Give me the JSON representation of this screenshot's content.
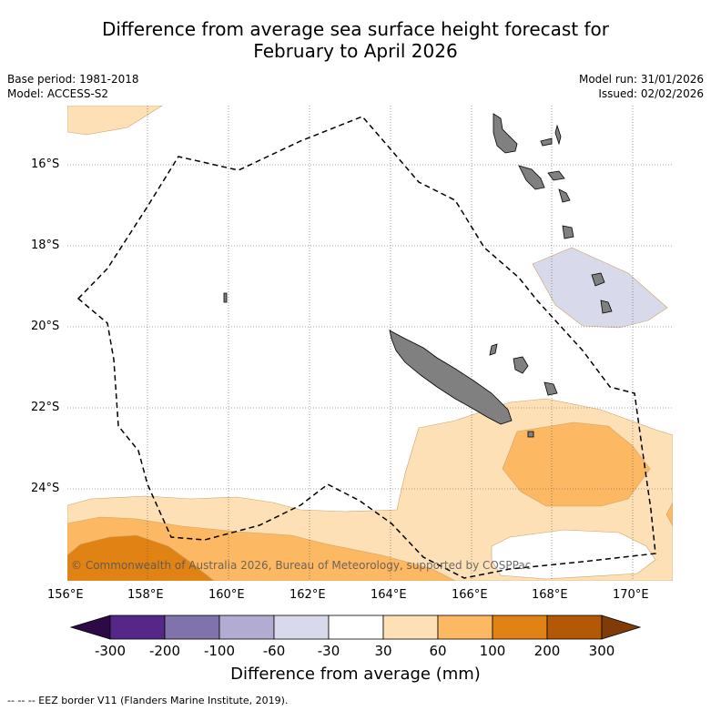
{
  "title": {
    "line1": "Difference from average sea surface height forecast for",
    "line2": "February to April 2026"
  },
  "meta": {
    "base_period": "Base period: 1981-2018",
    "model": "Model: ACCESS-S2",
    "model_run": "Model run: 31/01/2026",
    "issued": "Issued: 02/02/2026"
  },
  "map": {
    "lon_labels": [
      "156°E",
      "158°E",
      "160°E",
      "162°E",
      "164°E",
      "166°E",
      "168°E",
      "170°E"
    ],
    "lat_labels": [
      "16°S",
      "18°S",
      "20°S",
      "22°S",
      "24°S"
    ],
    "copyright": "© Commonwealth of Australia 2026, Bureau of Meteorology, supported by COSPPac"
  },
  "colorbar": {
    "ticks": [
      "-300",
      "-200",
      "-100",
      "-60",
      "-30",
      "30",
      "60",
      "100",
      "200",
      "300"
    ],
    "colors": {
      "below": "#2d0a45",
      "c1": "#542788",
      "c2": "#8073ac",
      "c3": "#b2abd2",
      "c4": "#d8daeb",
      "c5": "#ffffff",
      "c6": "#fee0b6",
      "c7": "#fdb863",
      "c8": "#e08214",
      "c9": "#b35806",
      "above": "#7f3b08"
    },
    "title": "Difference from average (mm)"
  },
  "legend": {
    "text": "--  --  -- EEZ border V11 (Flanders Marine Institute, 2019)."
  }
}
